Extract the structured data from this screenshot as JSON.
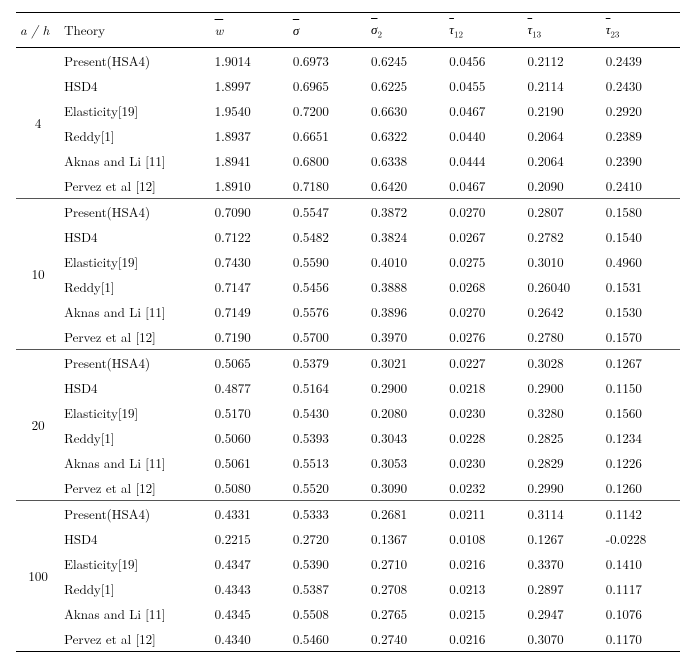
{
  "columns": {
    "ah": "a / h",
    "theory": "Theory",
    "w": "w",
    "sigma": "σ",
    "sigma2": "σ",
    "sigma2_sub": "2",
    "tau12": "τ",
    "tau12_sub": "12",
    "tau13": "τ",
    "tau13_sub": "13",
    "tau23": "τ",
    "tau23_sub": "23"
  },
  "groups": [
    {
      "ah": "4",
      "rows": [
        {
          "theory": "Present(HSA4)",
          "w": "1.9014",
          "s": "0.6973",
          "s2": "0.6245",
          "t12": "0.0456",
          "t13": "0.2112",
          "t23": "0.2439"
        },
        {
          "theory": "HSD4",
          "w": "1.8997",
          "s": "0.6965",
          "s2": "0.6225",
          "t12": "0.0455",
          "t13": "0.2114",
          "t23": "0.2430"
        },
        {
          "theory": "Elasticity[19]",
          "w": "1.9540",
          "s": "0.7200",
          "s2": "0.6630",
          "t12": "0.0467",
          "t13": "0.2190",
          "t23": "0.2920"
        },
        {
          "theory": "Reddy[1]",
          "w": "1.8937",
          "s": "0.6651",
          "s2": "0.6322",
          "t12": "0.0440",
          "t13": "0.2064",
          "t23": "0.2389"
        },
        {
          "theory": "Aknas and Li [11]",
          "w": "1.8941",
          "s": "0.6800",
          "s2": "0.6338",
          "t12": "0.0444",
          "t13": "0.2064",
          "t23": "0.2390"
        },
        {
          "theory": "Pervez et al [12]",
          "w": "1.8910",
          "s": "0.7180",
          "s2": "0.6420",
          "t12": "0.0467",
          "t13": "0.2090",
          "t23": "0.2410"
        }
      ]
    },
    {
      "ah": "10",
      "rows": [
        {
          "theory": "Present(HSA4)",
          "w": "0.7090",
          "s": "0.5547",
          "s2": "0.3872",
          "t12": "0.0270",
          "t13": "0.2807",
          "t23": "0.1580"
        },
        {
          "theory": "HSD4",
          "w": "0.7122",
          "s": "0.5482",
          "s2": "0.3824",
          "t12": "0.0267",
          "t13": "0.2782",
          "t23": "0.1540"
        },
        {
          "theory": "Elasticity[19]",
          "w": "0.7430",
          "s": "0.5590",
          "s2": "0.4010",
          "t12": "0.0275",
          "t13": "0.3010",
          "t23": "0.4960"
        },
        {
          "theory": "Reddy[1]",
          "w": "0.7147",
          "s": "0.5456",
          "s2": "0.3888",
          "t12": "0.0268",
          "t13": "0.26040",
          "t23": "0.1531"
        },
        {
          "theory": "Aknas and Li [11]",
          "w": "0.7149",
          "s": "0.5576",
          "s2": "0.3896",
          "t12": "0.0270",
          "t13": "0.2642",
          "t23": "0.1530"
        },
        {
          "theory": "Pervez et al [12]",
          "w": "0.7190",
          "s": "0.5700",
          "s2": "0.3970",
          "t12": "0.0276",
          "t13": "0.2780",
          "t23": "0.1570"
        }
      ]
    },
    {
      "ah": "20",
      "rows": [
        {
          "theory": "Present(HSA4)",
          "w": "0.5065",
          "s": "0.5379",
          "s2": "0.3021",
          "t12": "0.0227",
          "t13": "0.3028",
          "t23": "0.1267"
        },
        {
          "theory": "HSD4",
          "w": "0.4877",
          "s": "0.5164",
          "s2": "0.2900",
          "t12": "0.0218",
          "t13": "0.2900",
          "t23": "0.1150"
        },
        {
          "theory": "Elasticity[19]",
          "w": "0.5170",
          "s": "0.5430",
          "s2": "0.2080",
          "t12": "0.0230",
          "t13": "0.3280",
          "t23": "0.1560"
        },
        {
          "theory": "Reddy[1]",
          "w": "0.5060",
          "s": "0.5393",
          "s2": "0.3043",
          "t12": "0.0228",
          "t13": "0.2825",
          "t23": "0.1234"
        },
        {
          "theory": "Aknas and Li [11]",
          "w": "0.5061",
          "s": "0.5513",
          "s2": "0.3053",
          "t12": "0.0230",
          "t13": "0.2829",
          "t23": "0.1226"
        },
        {
          "theory": "Pervez et al [12]",
          "w": "0.5080",
          "s": "0.5520",
          "s2": "0.3090",
          "t12": "0.0232",
          "t13": "0.2990",
          "t23": "0.1260"
        }
      ]
    },
    {
      "ah": "100",
      "rows": [
        {
          "theory": "Present(HSA4)",
          "w": "0.4331",
          "s": "0.5333",
          "s2": "0.2681",
          "t12": "0.0211",
          "t13": "0.3114",
          "t23": "0.1142"
        },
        {
          "theory": "HSD4",
          "w": "0.2215",
          "s": "0.2720",
          "s2": "0.1367",
          "t12": "0.0108",
          "t13": "0.1267",
          "t23": "-0.0228"
        },
        {
          "theory": "Elasticity[19]",
          "w": "0.4347",
          "s": "0.5390",
          "s2": "0.2710",
          "t12": "0.0216",
          "t13": "0.3370",
          "t23": "0.1410"
        },
        {
          "theory": "Reddy[1]",
          "w": "0.4343",
          "s": "0.5387",
          "s2": "0.2708",
          "t12": "0.0213",
          "t13": "0.2897",
          "t23": "0.1117"
        },
        {
          "theory": "Aknas and Li [11]",
          "w": "0.4345",
          "s": "0.5508",
          "s2": "0.2765",
          "t12": "0.0215",
          "t13": "0.2947",
          "t23": "0.1076"
        },
        {
          "theory": "Pervez et al [12]",
          "w": "0.4340",
          "s": "0.5460",
          "s2": "0.2740",
          "t12": "0.0216",
          "t13": "0.3070",
          "t23": "0.1170"
        }
      ]
    }
  ]
}
